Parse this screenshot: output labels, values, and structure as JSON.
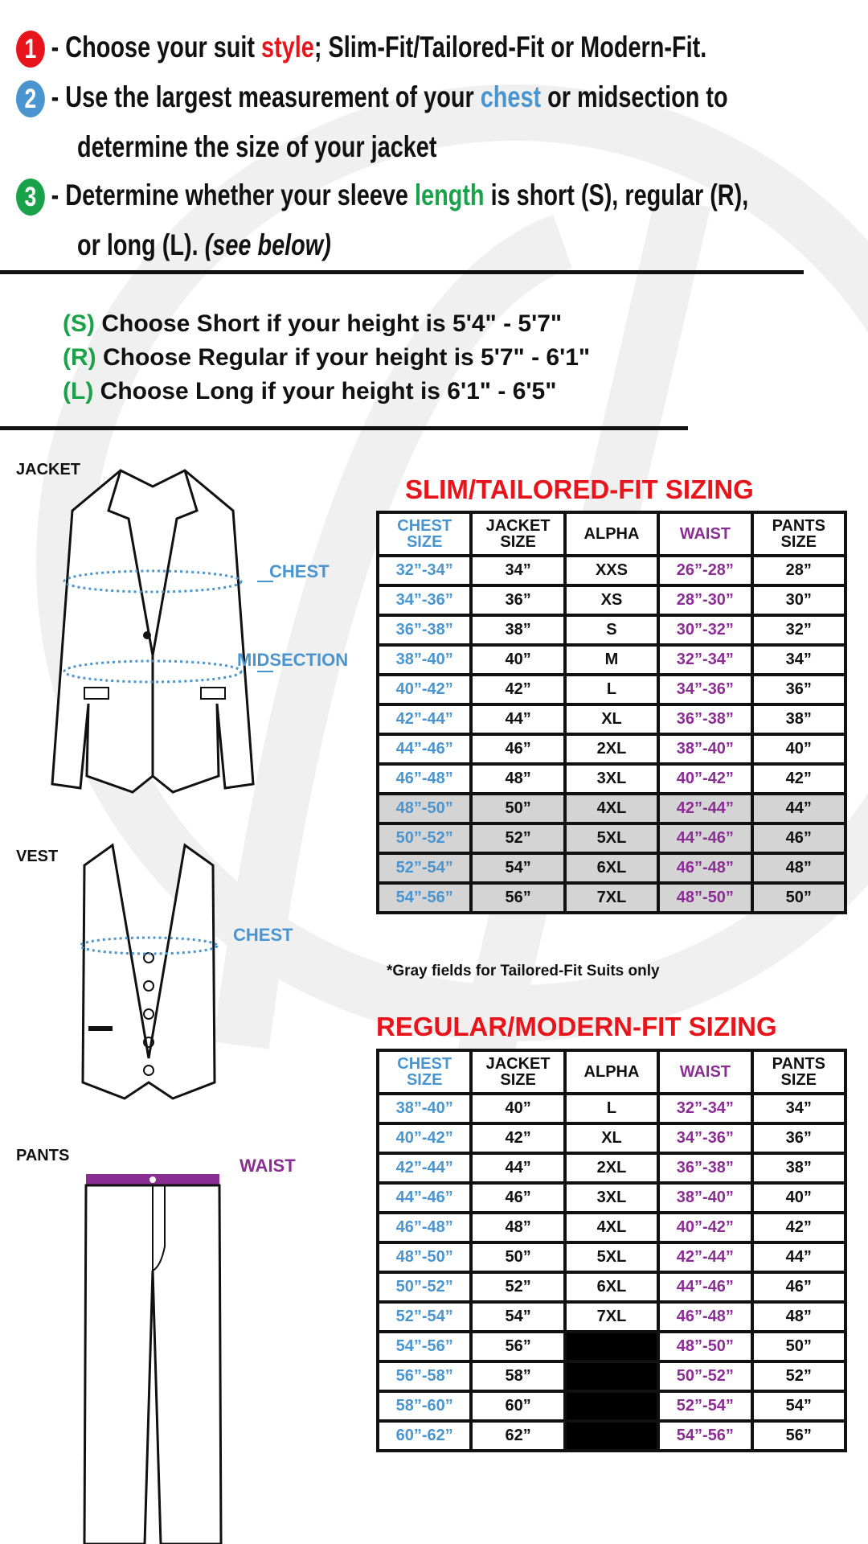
{
  "steps": [
    {
      "num": "1",
      "color": "#e8141b",
      "pre": "- Choose your suit ",
      "hl": "style",
      "post": "; Slim-Fit/Tailored-Fit or Modern-Fit."
    },
    {
      "num": "2",
      "color": "#4a95cf",
      "pre": "- Use the largest measurement of your ",
      "hl": "chest",
      "post": " or midsection to",
      "cont": "determine the size of your jacket"
    },
    {
      "num": "3",
      "color": "#1aa24a",
      "pre": "- Determine whether your sleeve ",
      "hl": "length",
      "post": " is short (S), regular (R),",
      "cont": "or long (L). ",
      "cont_italic": "(see below)"
    }
  ],
  "sleeves": [
    {
      "code": "(S)",
      "text": " Choose Short if your height is 5'4\" - 5'7\""
    },
    {
      "code": "(R)",
      "text": " Choose Regular if your height is  5'7\" - 6'1\""
    },
    {
      "code": "(L)",
      "text": " Choose Long if your height is  6'1\" - 6'5\""
    }
  ],
  "labels": {
    "jacket": "JACKET",
    "vest": "VEST",
    "pants": "PANTS",
    "chest": "CHEST",
    "midsection": "MIDSECTION",
    "vest_chest": "CHEST",
    "waist": "WAIST"
  },
  "headers": {
    "chest1": "CHEST",
    "chest2": "SIZE",
    "jacket1": "JACKET",
    "jacket2": "SIZE",
    "alpha": "ALPHA",
    "waist": "WAIST",
    "pants1": "PANTS",
    "pants2": "SIZE"
  },
  "slim": {
    "title": "SLIM/TAILORED-FIT SIZING",
    "note": "*Gray fields for Tailored-Fit Suits only",
    "rows": [
      [
        "32”-34”",
        "34”",
        "XXS",
        "26”-28”",
        "28”",
        false
      ],
      [
        "34”-36”",
        "36”",
        "XS",
        "28”-30”",
        "30”",
        false
      ],
      [
        "36”-38”",
        "38”",
        "S",
        "30”-32”",
        "32”",
        false
      ],
      [
        "38”-40”",
        "40”",
        "M",
        "32”-34”",
        "34”",
        false
      ],
      [
        "40”-42”",
        "42”",
        "L",
        "34”-36”",
        "36”",
        false
      ],
      [
        "42”-44”",
        "44”",
        "XL",
        "36”-38”",
        "38”",
        false
      ],
      [
        "44”-46”",
        "46”",
        "2XL",
        "38”-40”",
        "40”",
        false
      ],
      [
        "46”-48”",
        "48”",
        "3XL",
        "40”-42”",
        "42”",
        false
      ],
      [
        "48”-50”",
        "50”",
        "4XL",
        "42”-44”",
        "44”",
        true
      ],
      [
        "50”-52”",
        "52”",
        "5XL",
        "44”-46”",
        "46”",
        true
      ],
      [
        "52”-54”",
        "54”",
        "6XL",
        "46”-48”",
        "48”",
        true
      ],
      [
        "54”-56”",
        "56”",
        "7XL",
        "48”-50”",
        "50”",
        true
      ]
    ]
  },
  "regular": {
    "title": "REGULAR/MODERN-FIT SIZING",
    "rows": [
      [
        "38”-40”",
        "40”",
        "L",
        "32”-34”",
        "34”"
      ],
      [
        "40”-42”",
        "42”",
        "XL",
        "34”-36”",
        "36”"
      ],
      [
        "42”-44”",
        "44”",
        "2XL",
        "36”-38”",
        "38”"
      ],
      [
        "44”-46”",
        "46”",
        "3XL",
        "38”-40”",
        "40”"
      ],
      [
        "46”-48”",
        "48”",
        "4XL",
        "40”-42”",
        "42”"
      ],
      [
        "48”-50”",
        "50”",
        "5XL",
        "42”-44”",
        "44”"
      ],
      [
        "50”-52”",
        "52”",
        "6XL",
        "44”-46”",
        "46”"
      ],
      [
        "52”-54”",
        "54”",
        "7XL",
        "46”-48”",
        "48”"
      ],
      [
        "54”-56”",
        "56”",
        "",
        "48”-50”",
        "50”"
      ],
      [
        "56”-58”",
        "58”",
        "",
        "50”-52”",
        "52”"
      ],
      [
        "58”-60”",
        "60”",
        "",
        "52”-54”",
        "54”"
      ],
      [
        "60”-62”",
        "62”",
        "",
        "54”-56”",
        "56”"
      ]
    ]
  },
  "colors": {
    "red": "#e8141b",
    "blue": "#4a95cf",
    "green": "#1aa24a",
    "purple": "#8b2e94",
    "gray": "#d4d4d4"
  }
}
